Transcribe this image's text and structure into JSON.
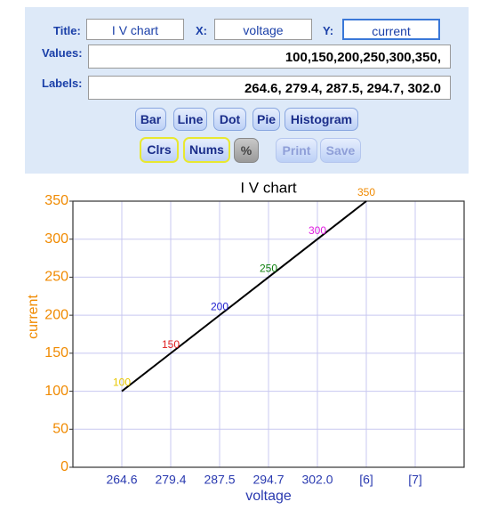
{
  "form": {
    "title_label": "Title:",
    "title_value": "I V chart",
    "x_label": "X:",
    "x_value": "voltage",
    "y_label": "Y:",
    "y_value": "current",
    "values_label": "Values:",
    "values_value": "100,150,200,250,300,350,",
    "labels_label": "Labels:",
    "labels_value": "264.6, 279.4, 287.5, 294.7, 302.0",
    "buttons": [
      "Bar",
      "Line",
      "Dot",
      "Pie",
      "Histogram"
    ],
    "options": [
      "Clrs",
      "Nums",
      "%",
      "Print",
      "Save"
    ]
  },
  "chart_data": {
    "type": "line",
    "title": "I V chart",
    "x_label": "voltage",
    "y_label": "current",
    "categories": [
      "264.6",
      "279.4",
      "287.5",
      "294.7",
      "302.0",
      "[6]",
      "[7]"
    ],
    "values": [
      100,
      150,
      200,
      250,
      300,
      350,
      null
    ],
    "color": "#000000",
    "label_colors": [
      "#e8c800",
      "#e02020",
      "#2020d0",
      "#108010",
      "#e020e0",
      "#f08a00"
    ],
    "ylim": [
      0,
      350
    ],
    "yticks": [
      0,
      50,
      100,
      150,
      200,
      250,
      300,
      350
    ],
    "grid": true
  }
}
